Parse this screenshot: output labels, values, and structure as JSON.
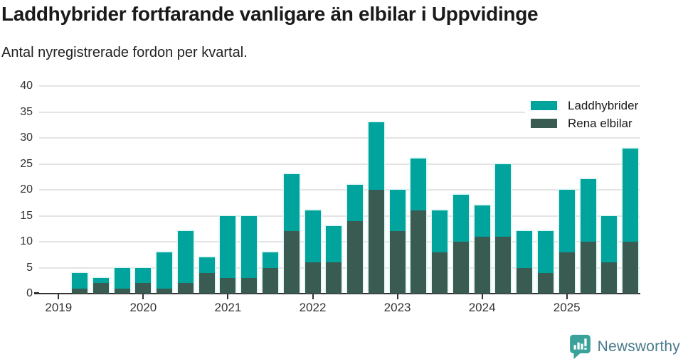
{
  "header": {
    "title": "Laddhybrider fortfarande vanligare än elbilar i Uppvidinge",
    "subtitle": "Antal nyregistrerade fordon per kvartal."
  },
  "chart_data": {
    "type": "bar",
    "variant": "overlapping-bars",
    "title": "Laddhybrider fortfarande vanligare än elbilar i Uppvidinge",
    "subtitle": "Antal nyregistrerade fordon per kvartal.",
    "x_unit": "quarter",
    "x_years": [
      "2019",
      "2020",
      "2021",
      "2022",
      "2023",
      "2024",
      "2025"
    ],
    "quarters": [
      "2019 Q1",
      "2019 Q2",
      "2019 Q3",
      "2019 Q4",
      "2020 Q1",
      "2020 Q2",
      "2020 Q3",
      "2020 Q4",
      "2021 Q1",
      "2021 Q2",
      "2021 Q3",
      "2021 Q4",
      "2022 Q1",
      "2022 Q2",
      "2022 Q3",
      "2022 Q4",
      "2023 Q1",
      "2023 Q2",
      "2023 Q3",
      "2023 Q4",
      "2024 Q1",
      "2024 Q2",
      "2024 Q3",
      "2024 Q4",
      "2025 Q1",
      "2025 Q2",
      "2025 Q3",
      "2025 Q4"
    ],
    "series": [
      {
        "name": "Laddhybrider",
        "color": "#00a49d",
        "values": [
          0,
          4,
          3,
          5,
          5,
          8,
          12,
          7,
          15,
          15,
          8,
          23,
          16,
          13,
          21,
          33,
          20,
          26,
          16,
          19,
          17,
          25,
          12,
          12,
          20,
          22,
          15,
          28
        ]
      },
      {
        "name": "Rena elbilar",
        "color": "#3a5b51",
        "values": [
          0,
          1,
          2,
          1,
          2,
          1,
          2,
          4,
          3,
          3,
          5,
          12,
          6,
          6,
          14,
          20,
          12,
          16,
          8,
          10,
          11,
          11,
          5,
          4,
          8,
          10,
          6,
          10
        ]
      }
    ],
    "ylim": [
      0,
      40
    ],
    "yticks": [
      0,
      5,
      10,
      15,
      20,
      25,
      30,
      35,
      40
    ],
    "grid": "horizontal",
    "legend_position": "top-right"
  },
  "footer": {
    "brand": "Newsworthy",
    "logo_icon": "newsworthy-bubble-bar-chart-icon",
    "logo_color": "#3aa29a",
    "brand_text_color": "#4a7a8c"
  }
}
